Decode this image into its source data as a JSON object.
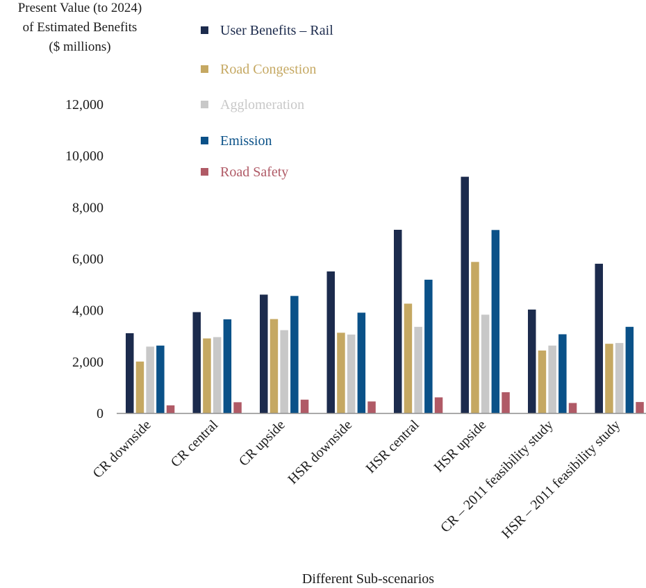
{
  "chart_data": {
    "type": "bar",
    "ylabel_lines": [
      "Present Value (to 2024)",
      "of Estimated Benefits",
      "($ millions)"
    ],
    "xlabel": "Different Sub-scenarios",
    "ylim": [
      0,
      12000
    ],
    "y_ticks": [
      0,
      2000,
      4000,
      6000,
      8000,
      10000,
      12000
    ],
    "y_tick_labels": [
      "0",
      "2,000",
      "4,000",
      "6,000",
      "8,000",
      "10,000",
      "12,000"
    ],
    "grid": false,
    "legend_position": "top",
    "categories": [
      "CR downside",
      "CR central",
      "CR upside",
      "HSR downside",
      "HSR central",
      "HSR upside",
      "CR – 2011 feasibility study",
      "HSR – 2011 feasibility study"
    ],
    "series": [
      {
        "name": "User Benefits – Rail",
        "color": "#1c2b4d",
        "values": [
          3100,
          3920,
          4600,
          5500,
          7120,
          9180,
          4020,
          5800
        ]
      },
      {
        "name": "Road Congestion",
        "color": "#c5a862",
        "values": [
          2000,
          2900,
          3650,
          3120,
          4250,
          5870,
          2430,
          2690
        ]
      },
      {
        "name": "Agglomeration",
        "color": "#c8c8c8",
        "values": [
          2580,
          2950,
          3220,
          3050,
          3350,
          3820,
          2620,
          2720
        ]
      },
      {
        "name": "Emission",
        "color": "#0a5188",
        "values": [
          2620,
          3640,
          4550,
          3900,
          5180,
          7110,
          3060,
          3350
        ]
      },
      {
        "name": "Road Safety",
        "color": "#b05a66",
        "values": [
          300,
          420,
          520,
          450,
          610,
          810,
          390,
          430
        ]
      }
    ]
  }
}
